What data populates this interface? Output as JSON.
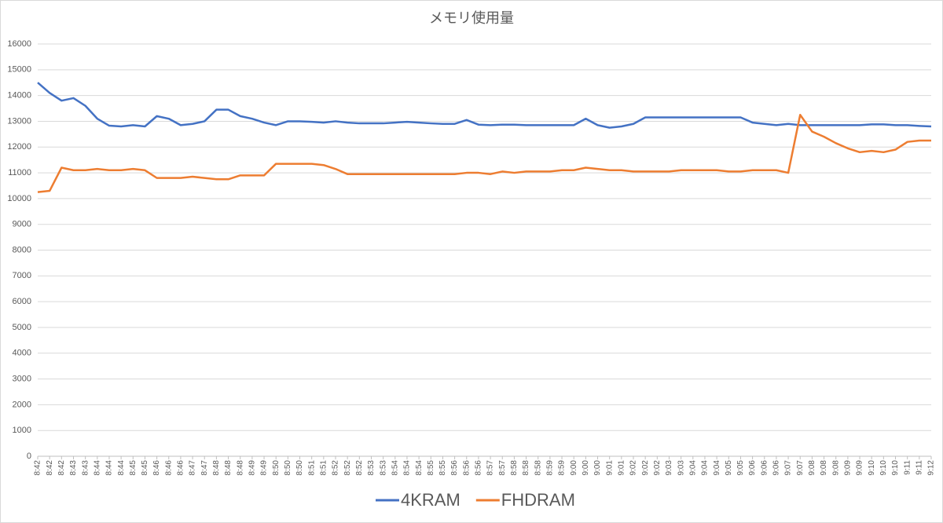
{
  "chart_data": {
    "type": "line",
    "title": "メモリ使用量",
    "categories": [
      "8:42",
      "8:42",
      "8:42",
      "8:43",
      "8:43",
      "8:44",
      "8:44",
      "8:44",
      "8:45",
      "8:45",
      "8:46",
      "8:46",
      "8:46",
      "8:47",
      "8:47",
      "8:48",
      "8:48",
      "8:48",
      "8:49",
      "8:49",
      "8:50",
      "8:50",
      "8:50",
      "8:51",
      "8:51",
      "8:52",
      "8:52",
      "8:52",
      "8:53",
      "8:53",
      "8:54",
      "8:54",
      "8:54",
      "8:55",
      "8:55",
      "8:56",
      "8:56",
      "8:56",
      "8:57",
      "8:57",
      "8:58",
      "8:58",
      "8:58",
      "8:59",
      "8:59",
      "9:00",
      "9:00",
      "9:00",
      "9:01",
      "9:01",
      "9:02",
      "9:02",
      "9:02",
      "9:03",
      "9:03",
      "9:04",
      "9:04",
      "9:04",
      "9:05",
      "9:05",
      "9:06",
      "9:06",
      "9:06",
      "9:07",
      "9:07",
      "9:08",
      "9:08",
      "9:08",
      "9:09",
      "9:09",
      "9:10",
      "9:10",
      "9:10",
      "9:11",
      "9:11",
      "9:12"
    ],
    "series": [
      {
        "name": "4KRAM",
        "color": "#4472c4",
        "values": [
          14500,
          14100,
          13800,
          13900,
          13600,
          13100,
          12830,
          12800,
          12850,
          12800,
          13200,
          13100,
          12850,
          12900,
          13000,
          13450,
          13450,
          13200,
          13100,
          12950,
          12850,
          13000,
          13000,
          12980,
          12950,
          13000,
          12950,
          12920,
          12920,
          12920,
          12950,
          12980,
          12950,
          12920,
          12900,
          12900,
          13050,
          12870,
          12850,
          12870,
          12870,
          12850,
          12850,
          12850,
          12850,
          12850,
          13100,
          12850,
          12750,
          12800,
          12900,
          13150,
          13150,
          13150,
          13150,
          13150,
          13150,
          13150,
          13150,
          13150,
          12950,
          12900,
          12850,
          12900,
          12850,
          12850,
          12850,
          12850,
          12850,
          12850,
          12880,
          12880,
          12850,
          12850,
          12820,
          12800
        ]
      },
      {
        "name": "FHDRAM",
        "color": "#ed7d31",
        "values": [
          10250,
          10300,
          11200,
          11100,
          11100,
          11150,
          11100,
          11100,
          11150,
          11100,
          10800,
          10800,
          10800,
          10850,
          10800,
          10750,
          10750,
          10900,
          10900,
          10900,
          11350,
          11350,
          11350,
          11350,
          11300,
          11150,
          10950,
          10950,
          10950,
          10950,
          10950,
          10950,
          10950,
          10950,
          10950,
          10950,
          11000,
          11000,
          10950,
          11050,
          11000,
          11050,
          11050,
          11050,
          11100,
          11100,
          11200,
          11150,
          11100,
          11100,
          11050,
          11050,
          11050,
          11050,
          11100,
          11100,
          11100,
          11100,
          11050,
          11050,
          11100,
          11100,
          11100,
          11000,
          13250,
          12600,
          12400,
          12150,
          11950,
          11800,
          11850,
          11800,
          11900,
          12200,
          12250,
          12250
        ]
      }
    ],
    "ylim": [
      0,
      16000
    ],
    "yticks": [
      0,
      1000,
      2000,
      3000,
      4000,
      5000,
      6000,
      7000,
      8000,
      9000,
      10000,
      11000,
      12000,
      13000,
      14000,
      15000,
      16000
    ],
    "grid": true,
    "legend": "bottom"
  }
}
